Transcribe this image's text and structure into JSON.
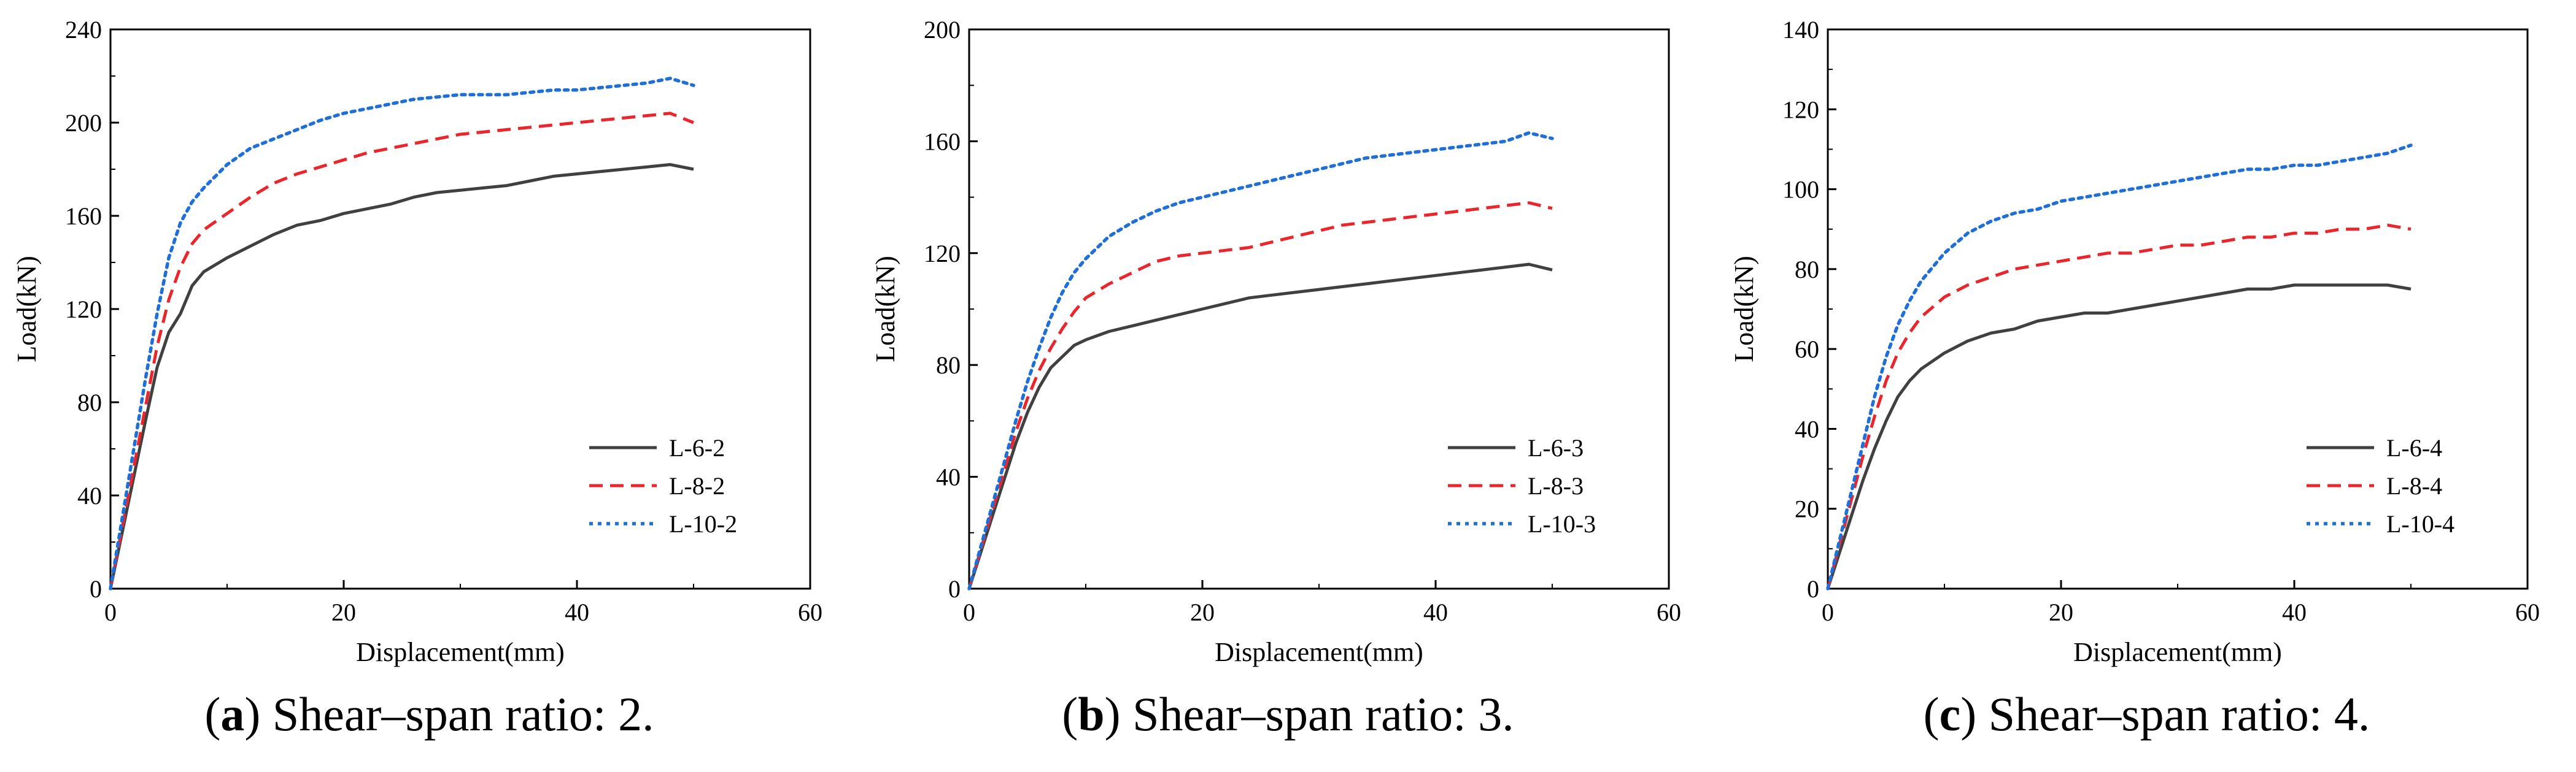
{
  "chart_data": [
    {
      "type": "line",
      "caption": {
        "letter": "a",
        "text": " Shear–span ratio: 2.",
        "open": "(",
        "close": ")"
      },
      "xlabel": "Displacement(mm)",
      "ylabel": "Load(kN)",
      "xlim": [
        0,
        60
      ],
      "ylim": [
        0,
        240
      ],
      "xticks": [
        0,
        20,
        40,
        60
      ],
      "yticks": [
        0,
        40,
        80,
        120,
        160,
        200,
        240
      ],
      "legend_position": "bottom-right",
      "series": [
        {
          "name": "L-6-2",
          "color": "#404040",
          "style": "solid",
          "x": [
            0,
            1,
            2,
            3,
            4,
            5,
            6,
            7,
            8,
            10,
            12,
            14,
            16,
            18,
            20,
            22,
            24,
            26,
            28,
            30,
            32,
            34,
            36,
            38,
            40,
            42,
            44,
            46,
            48,
            50
          ],
          "y": [
            0,
            24,
            48,
            72,
            95,
            110,
            118,
            130,
            136,
            142,
            147,
            152,
            156,
            158,
            161,
            163,
            165,
            168,
            170,
            171,
            172,
            173,
            175,
            177,
            178,
            179,
            180,
            181,
            182,
            180
          ]
        },
        {
          "name": "L-8-2",
          "color": "#e8262c",
          "style": "dashed",
          "x": [
            0,
            1,
            2,
            3,
            4,
            5,
            6,
            7,
            8,
            10,
            12,
            14,
            16,
            18,
            20,
            22,
            24,
            26,
            28,
            30,
            32,
            34,
            36,
            38,
            40,
            42,
            44,
            46,
            48,
            50
          ],
          "y": [
            0,
            26,
            52,
            78,
            104,
            124,
            138,
            148,
            154,
            161,
            168,
            174,
            178,
            181,
            184,
            187,
            189,
            191,
            193,
            195,
            196,
            197,
            198,
            199,
            200,
            201,
            202,
            203,
            204,
            200
          ]
        },
        {
          "name": "L-10-2",
          "color": "#1f6fd6",
          "style": "dotted",
          "x": [
            0,
            1,
            2,
            3,
            4,
            5,
            6,
            7,
            8,
            10,
            12,
            14,
            16,
            18,
            20,
            22,
            24,
            26,
            28,
            30,
            32,
            34,
            36,
            38,
            40,
            42,
            44,
            46,
            48,
            50
          ],
          "y": [
            0,
            30,
            60,
            90,
            118,
            142,
            157,
            166,
            172,
            182,
            189,
            193,
            197,
            201,
            204,
            206,
            208,
            210,
            211,
            212,
            212,
            212,
            213,
            214,
            214,
            215,
            216,
            217,
            219,
            216
          ]
        }
      ]
    },
    {
      "type": "line",
      "caption": {
        "letter": "b",
        "text": " Shear–span ratio: 3.",
        "open": "(",
        "close": ")"
      },
      "xlabel": "Displacement(mm)",
      "ylabel": "Load(kN)",
      "xlim": [
        0,
        60
      ],
      "ylim": [
        0,
        200
      ],
      "xticks": [
        0,
        20,
        40,
        60
      ],
      "yticks": [
        0,
        40,
        80,
        120,
        160,
        200
      ],
      "legend_position": "bottom-right",
      "series": [
        {
          "name": "L-6-3",
          "color": "#404040",
          "style": "solid",
          "x": [
            0,
            1,
            2,
            3,
            4,
            5,
            6,
            7,
            8,
            9,
            10,
            12,
            14,
            16,
            18,
            20,
            22,
            24,
            26,
            28,
            30,
            32,
            34,
            36,
            38,
            40,
            42,
            44,
            46,
            48,
            50
          ],
          "y": [
            0,
            13,
            26,
            39,
            52,
            63,
            72,
            79,
            83,
            87,
            89,
            92,
            94,
            96,
            98,
            100,
            102,
            104,
            105,
            106,
            107,
            108,
            109,
            110,
            111,
            112,
            113,
            114,
            115,
            116,
            114
          ]
        },
        {
          "name": "L-8-3",
          "color": "#e8262c",
          "style": "dashed",
          "x": [
            0,
            1,
            2,
            3,
            4,
            5,
            6,
            7,
            8,
            9,
            10,
            12,
            14,
            16,
            18,
            20,
            22,
            24,
            26,
            28,
            30,
            32,
            34,
            36,
            38,
            40,
            42,
            44,
            46,
            48,
            50
          ],
          "y": [
            0,
            14,
            28,
            42,
            56,
            68,
            78,
            86,
            93,
            99,
            104,
            109,
            113,
            117,
            119,
            120,
            121,
            122,
            124,
            126,
            128,
            130,
            131,
            132,
            133,
            134,
            135,
            136,
            137,
            138,
            136
          ]
        },
        {
          "name": "L-10-3",
          "color": "#1f6fd6",
          "style": "dotted",
          "x": [
            0,
            1,
            2,
            3,
            4,
            5,
            6,
            7,
            8,
            9,
            10,
            12,
            14,
            16,
            18,
            20,
            22,
            24,
            26,
            28,
            30,
            32,
            34,
            36,
            38,
            40,
            42,
            44,
            46,
            48,
            50
          ],
          "y": [
            0,
            15,
            30,
            45,
            60,
            74,
            86,
            97,
            106,
            113,
            118,
            126,
            131,
            135,
            138,
            140,
            142,
            144,
            146,
            148,
            150,
            152,
            154,
            155,
            156,
            157,
            158,
            159,
            160,
            163,
            161
          ]
        }
      ]
    },
    {
      "type": "line",
      "caption": {
        "letter": "c",
        "text": " Shear–span ratio: 4.",
        "open": "(",
        "close": ")"
      },
      "xlabel": "Displacement(mm)",
      "ylabel": "Load(kN)",
      "xlim": [
        0,
        60
      ],
      "ylim": [
        0,
        140
      ],
      "xticks": [
        0,
        20,
        40,
        60
      ],
      "yticks": [
        0,
        20,
        40,
        60,
        80,
        100,
        120,
        140
      ],
      "legend_position": "bottom-right",
      "series": [
        {
          "name": "L-6-4",
          "color": "#404040",
          "style": "solid",
          "x": [
            0,
            1,
            2,
            3,
            4,
            5,
            6,
            7,
            8,
            10,
            12,
            14,
            16,
            18,
            20,
            22,
            24,
            26,
            28,
            30,
            32,
            34,
            36,
            38,
            40,
            42,
            44,
            46,
            48,
            50
          ],
          "y": [
            0,
            9,
            18,
            27,
            35,
            42,
            48,
            52,
            55,
            59,
            62,
            64,
            65,
            67,
            68,
            69,
            69,
            70,
            71,
            72,
            73,
            74,
            75,
            75,
            76,
            76,
            76,
            76,
            76,
            75
          ]
        },
        {
          "name": "L-8-4",
          "color": "#e8262c",
          "style": "dashed",
          "x": [
            0,
            1,
            2,
            3,
            4,
            5,
            6,
            7,
            8,
            10,
            12,
            14,
            16,
            18,
            20,
            22,
            24,
            26,
            28,
            30,
            32,
            34,
            36,
            38,
            40,
            42,
            44,
            46,
            48,
            50
          ],
          "y": [
            0,
            11,
            22,
            33,
            43,
            52,
            59,
            64,
            68,
            73,
            76,
            78,
            80,
            81,
            82,
            83,
            84,
            84,
            85,
            86,
            86,
            87,
            88,
            88,
            89,
            89,
            90,
            90,
            91,
            90
          ]
        },
        {
          "name": "L-10-4",
          "color": "#1f6fd6",
          "style": "dotted",
          "x": [
            0,
            1,
            2,
            3,
            4,
            5,
            6,
            7,
            8,
            10,
            12,
            14,
            16,
            18,
            20,
            22,
            24,
            26,
            28,
            30,
            32,
            34,
            36,
            38,
            40,
            42,
            44,
            46,
            48,
            50
          ],
          "y": [
            0,
            12,
            24,
            36,
            48,
            58,
            66,
            72,
            77,
            84,
            89,
            92,
            94,
            95,
            97,
            98,
            99,
            100,
            101,
            102,
            103,
            104,
            105,
            105,
            106,
            106,
            107,
            108,
            109,
            111
          ]
        }
      ]
    }
  ]
}
